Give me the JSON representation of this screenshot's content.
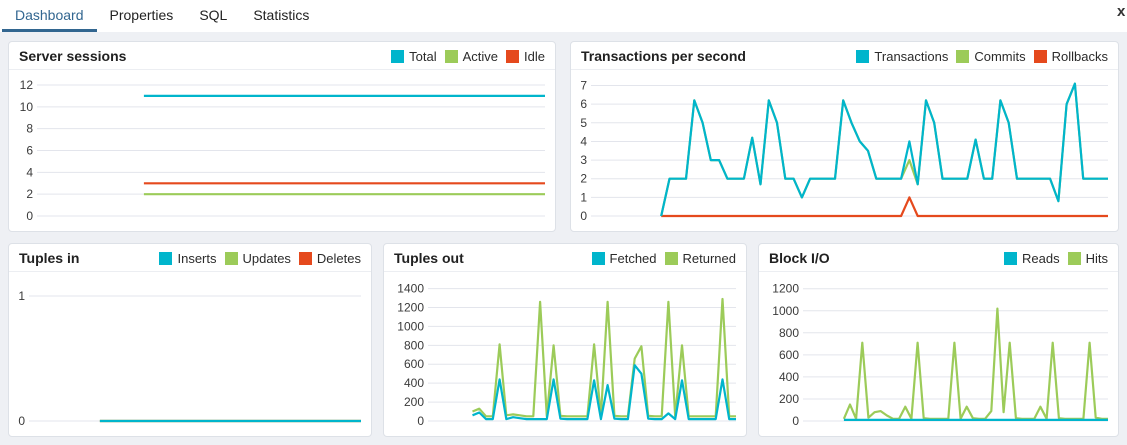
{
  "tabs": {
    "items": [
      {
        "label": "Dashboard",
        "active": true
      },
      {
        "label": "Properties",
        "active": false
      },
      {
        "label": "SQL",
        "active": false
      },
      {
        "label": "Statistics",
        "active": false
      }
    ],
    "close_label": "x"
  },
  "colors": {
    "accent_tab": "#326690",
    "series_cyan": "#00b5cc",
    "series_green": "#9ccb59",
    "series_red": "#e5491d",
    "gridline": "#e3e5ec",
    "tick_text": "#3a3a3a"
  },
  "chart_data": [
    {
      "type": "line",
      "title": "Server sessions",
      "yticks": [
        0,
        2,
        4,
        6,
        8,
        10,
        12
      ],
      "ymax": 12.55,
      "legend_position": "top-right",
      "grid": true,
      "x_count": 50,
      "series": [
        {
          "name": "Total",
          "color": "#00b5cc",
          "pad": 10,
          "values": [
            11,
            11,
            11,
            11,
            11,
            11,
            11,
            11,
            11,
            11,
            11,
            11,
            11,
            11,
            11,
            11,
            11,
            11,
            11,
            11,
            11,
            11,
            11,
            11,
            11,
            11,
            11,
            11,
            11,
            11,
            11,
            11,
            11,
            11,
            11,
            11,
            11,
            11,
            11,
            11
          ]
        },
        {
          "name": "Active",
          "color": "#9ccb59",
          "pad": 10,
          "values": [
            2,
            2,
            2,
            2,
            2,
            2,
            2,
            2,
            2,
            2,
            2,
            2,
            2,
            2,
            2,
            2,
            2,
            2,
            2,
            2,
            2,
            2,
            2,
            2,
            2,
            2,
            2,
            2,
            2,
            2,
            2,
            2,
            2,
            2,
            2,
            2,
            2,
            2,
            2,
            2
          ]
        },
        {
          "name": "Idle",
          "color": "#e5491d",
          "pad": 10,
          "values": [
            3,
            3,
            3,
            3,
            3,
            3,
            3,
            3,
            3,
            3,
            3,
            3,
            3,
            3,
            3,
            3,
            3,
            3,
            3,
            3,
            3,
            3,
            3,
            3,
            3,
            3,
            3,
            3,
            3,
            3,
            3,
            3,
            3,
            3,
            3,
            3,
            3,
            3,
            3,
            3
          ]
        }
      ]
    },
    {
      "type": "line",
      "title": "Transactions per second",
      "yticks": [
        0,
        1,
        2,
        3,
        4,
        5,
        6,
        7
      ],
      "ymax": 7.35,
      "legend_position": "top-right",
      "grid": true,
      "x_count": 63,
      "series": [
        {
          "name": "Transactions",
          "color": "#00b5cc",
          "pad": 8,
          "values": [
            0,
            2,
            2,
            2,
            6.2,
            5,
            3,
            3,
            2,
            2,
            2,
            4.2,
            1.7,
            6.2,
            5,
            2,
            2,
            1,
            2,
            2,
            2,
            2,
            6.2,
            5,
            4,
            3.5,
            2,
            2,
            2,
            2,
            4,
            1.7,
            6.2,
            5,
            2,
            2,
            2,
            2,
            4.1,
            2,
            2,
            6.2,
            5,
            2,
            2,
            2,
            2,
            2,
            0.8,
            6,
            7.1,
            2,
            2,
            2,
            2
          ]
        },
        {
          "name": "Commits",
          "color": "#9ccb59",
          "pad": 8,
          "values": [
            0,
            2,
            2,
            2,
            6.2,
            5,
            3,
            3,
            2,
            2,
            2,
            4.2,
            1.7,
            6.2,
            5,
            2,
            2,
            1,
            2,
            2,
            2,
            2,
            6.2,
            5,
            4,
            3.5,
            2,
            2,
            2,
            2,
            3,
            1.7,
            6.2,
            5,
            2,
            2,
            2,
            2,
            4.1,
            2,
            2,
            6.2,
            5,
            2,
            2,
            2,
            2,
            2,
            0.8,
            6,
            7.1,
            2,
            2,
            2,
            2
          ]
        },
        {
          "name": "Rollbacks",
          "color": "#e5491d",
          "pad": 8,
          "values": [
            0,
            0,
            0,
            0,
            0,
            0,
            0,
            0,
            0,
            0,
            0,
            0,
            0,
            0,
            0,
            0,
            0,
            0,
            0,
            0,
            0,
            0,
            0,
            0,
            0,
            0,
            0,
            0,
            0,
            0,
            1,
            0,
            0,
            0,
            0,
            0,
            0,
            0,
            0,
            0,
            0,
            0,
            0,
            0,
            0,
            0,
            0,
            0,
            0,
            0,
            0,
            0,
            0,
            0,
            0
          ]
        }
      ]
    },
    {
      "type": "line",
      "title": "Tuples in",
      "yticks": [
        0,
        1
      ],
      "ymax": 1.12,
      "legend_position": "top-right",
      "grid": true,
      "x_count": 50,
      "series": [
        {
          "name": "Inserts",
          "color": "#00b5cc",
          "pad": 10,
          "values": [
            0,
            0,
            0,
            0,
            0,
            0,
            0,
            0,
            0,
            0,
            0,
            0,
            0,
            0,
            0,
            0,
            0,
            0,
            0,
            0,
            0,
            0,
            0,
            0,
            0,
            0,
            0,
            0,
            0,
            0,
            0,
            0,
            0,
            0,
            0,
            0,
            0,
            0,
            0,
            0
          ]
        },
        {
          "name": "Updates",
          "color": "#9ccb59",
          "pad": 10,
          "values": [
            0,
            0,
            0,
            0,
            0,
            0,
            0,
            0,
            0,
            0,
            0,
            0,
            0,
            0,
            0,
            0,
            0,
            0,
            0,
            0,
            0,
            0,
            0,
            0,
            0,
            0,
            0,
            0,
            0,
            0,
            0,
            0,
            0,
            0,
            0,
            0,
            0,
            0,
            0,
            0
          ]
        },
        {
          "name": "Deletes",
          "color": "#e5491d",
          "pad": 10,
          "values": [
            0,
            0,
            0,
            0,
            0,
            0,
            0,
            0,
            0,
            0,
            0,
            0,
            0,
            0,
            0,
            0,
            0,
            0,
            0,
            0,
            0,
            0,
            0,
            0,
            0,
            0,
            0,
            0,
            0,
            0,
            0,
            0,
            0,
            0,
            0,
            0,
            0,
            0,
            0,
            0
          ]
        }
      ]
    },
    {
      "type": "line",
      "title": "Tuples out",
      "yticks": [
        0,
        200,
        400,
        600,
        800,
        1000,
        1200,
        1400
      ],
      "ymax": 1480,
      "legend_position": "top-right",
      "grid": true,
      "x_count": 46,
      "series": [
        {
          "name": "Fetched",
          "color": "#00b5cc",
          "pad": 6,
          "values": [
            60,
            90,
            20,
            20,
            440,
            20,
            40,
            30,
            20,
            20,
            20,
            20,
            440,
            25,
            20,
            20,
            20,
            20,
            430,
            20,
            380,
            25,
            20,
            20,
            590,
            500,
            25,
            20,
            20,
            80,
            20,
            430,
            20,
            20,
            20,
            20,
            20,
            440,
            20,
            20
          ]
        },
        {
          "name": "Returned",
          "color": "#9ccb59",
          "pad": 6,
          "values": [
            100,
            130,
            50,
            50,
            810,
            60,
            70,
            60,
            50,
            50,
            1260,
            50,
            800,
            55,
            50,
            50,
            50,
            50,
            810,
            50,
            1260,
            55,
            50,
            50,
            660,
            790,
            55,
            50,
            50,
            1260,
            50,
            800,
            50,
            50,
            50,
            50,
            50,
            1290,
            50,
            50
          ]
        }
      ]
    },
    {
      "type": "line",
      "title": "Block I/O",
      "yticks": [
        0,
        200,
        400,
        600,
        800,
        1000,
        1200
      ],
      "ymax": 1270,
      "legend_position": "top-right",
      "grid": true,
      "x_count": 50,
      "series": [
        {
          "name": "Reads",
          "color": "#00b5cc",
          "pad": 6,
          "values": [
            10,
            10,
            10,
            10,
            10,
            10,
            10,
            10,
            10,
            10,
            10,
            10,
            10,
            10,
            10,
            10,
            10,
            10,
            10,
            10,
            10,
            10,
            10,
            10,
            10,
            10,
            10,
            10,
            10,
            10,
            10,
            10,
            10,
            10,
            10,
            10,
            10,
            10,
            10,
            10,
            10,
            10,
            10,
            10
          ]
        },
        {
          "name": "Hits",
          "color": "#9ccb59",
          "pad": 6,
          "values": [
            20,
            150,
            20,
            710,
            30,
            80,
            90,
            50,
            20,
            20,
            130,
            20,
            710,
            25,
            20,
            20,
            20,
            20,
            710,
            20,
            130,
            25,
            20,
            20,
            90,
            1020,
            80,
            710,
            25,
            20,
            20,
            20,
            130,
            20,
            710,
            25,
            20,
            20,
            20,
            20,
            710,
            30,
            20,
            20
          ]
        }
      ]
    }
  ]
}
